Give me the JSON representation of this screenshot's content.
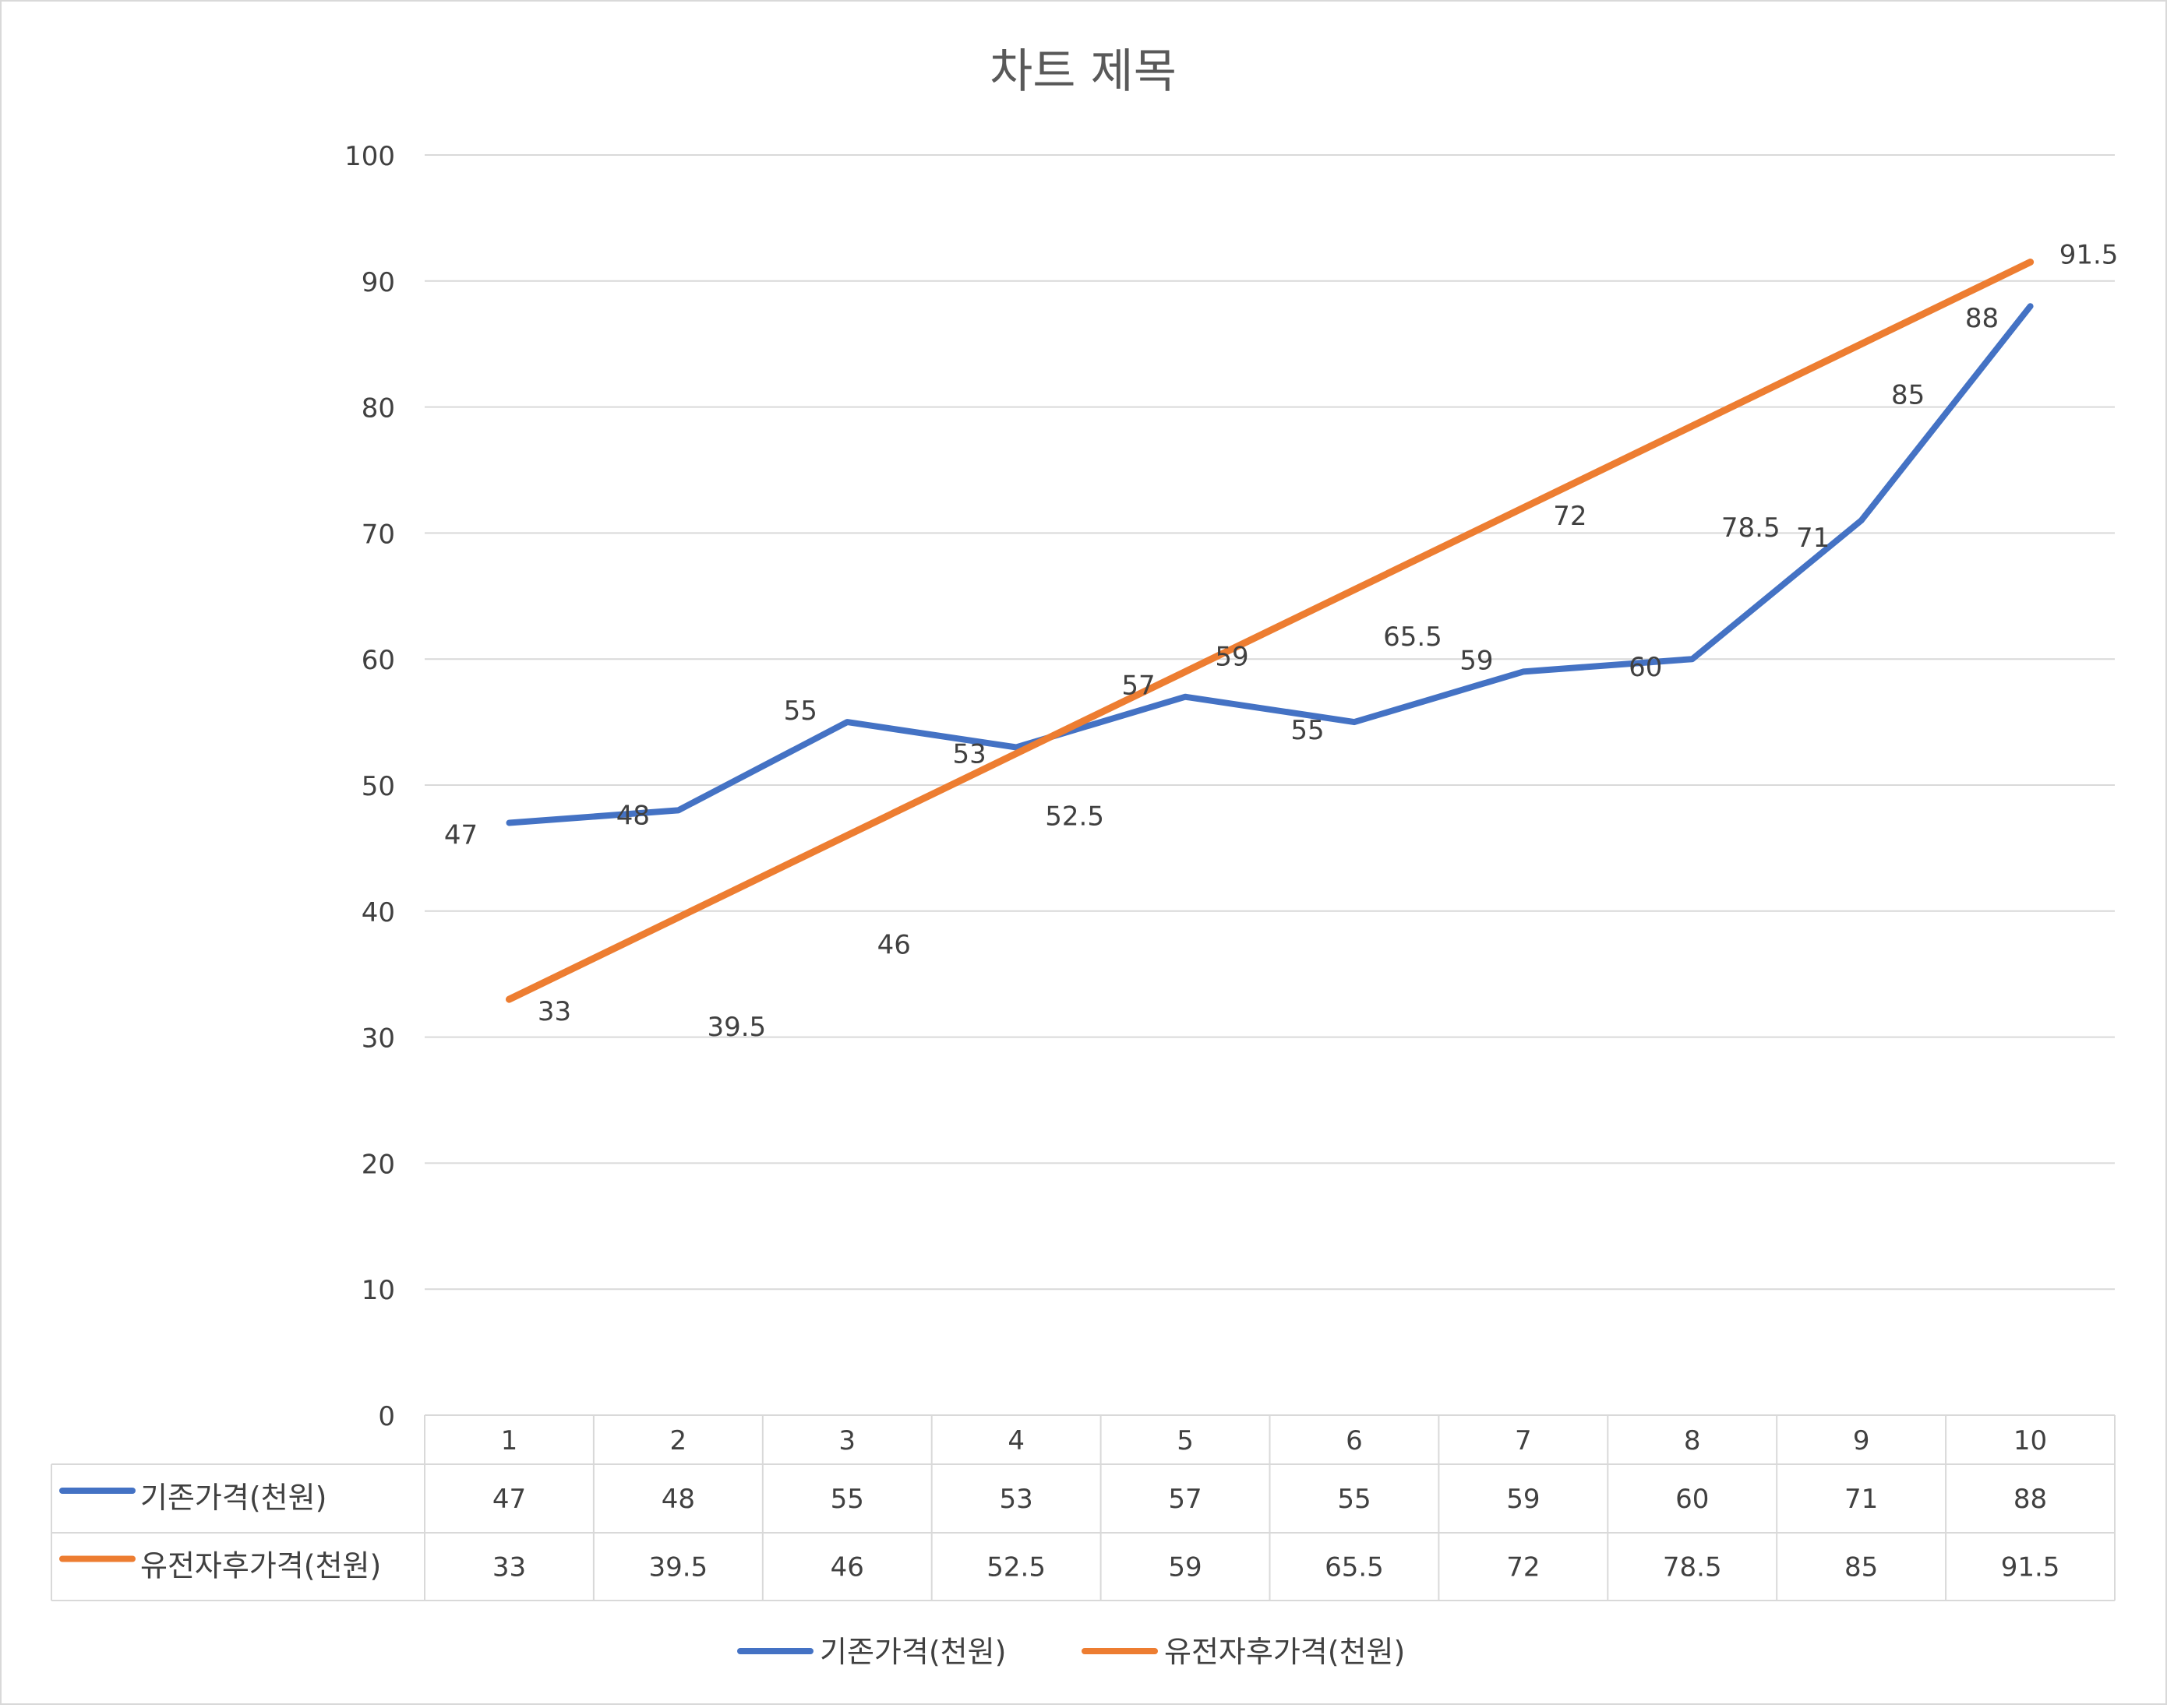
{
  "chart_data": {
    "type": "line",
    "title": "차트 제목",
    "categories": [
      "1",
      "2",
      "3",
      "4",
      "5",
      "6",
      "7",
      "8",
      "9",
      "10"
    ],
    "series": [
      {
        "name": "기존가격(천원)",
        "color": "#4472C4",
        "values": [
          47,
          48,
          55,
          53,
          57,
          55,
          59,
          60,
          71,
          88
        ]
      },
      {
        "name": "유전자후가격(천원)",
        "color": "#ED7D31",
        "values": [
          33,
          39.5,
          46,
          52.5,
          59,
          65.5,
          72,
          78.5,
          85,
          91.5
        ]
      }
    ],
    "yticks": [
      "0",
      "10",
      "20",
      "30",
      "40",
      "50",
      "60",
      "70",
      "80",
      "90",
      "100"
    ],
    "ylim": [
      0,
      100
    ],
    "grid": true,
    "data_table": true,
    "legend_position": "bottom",
    "xlabel": "",
    "ylabel": ""
  },
  "colors": {
    "grid": "#D9D9D9",
    "text": "#404040",
    "title": "#595959",
    "border": "#D9D9D9"
  }
}
